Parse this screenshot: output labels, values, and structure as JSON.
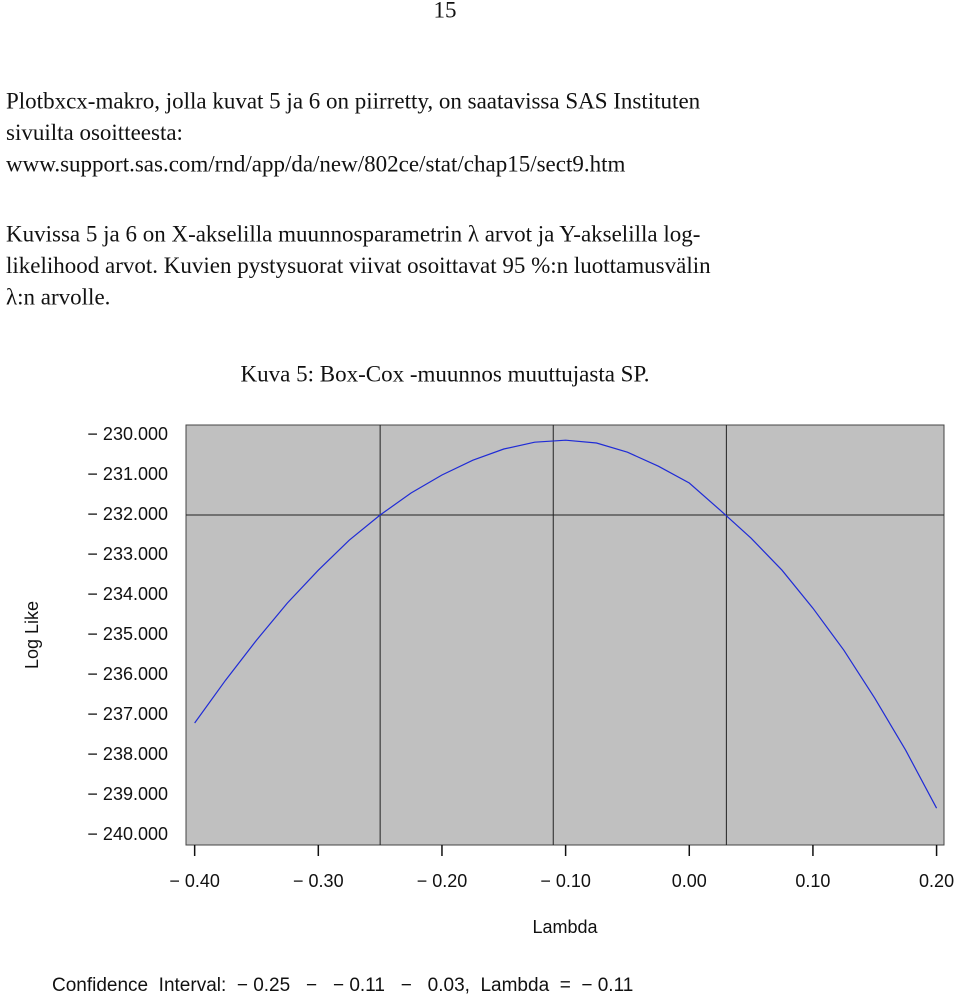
{
  "page_number": "15",
  "paragraphs": [
    [
      "Plotbxcx-makro, jolla kuvat 5 ja 6 on piirretty, on saatavissa SAS Instituten",
      "sivuilta osoitteesta:",
      "www.support.sas.com/rnd/app/da/new/802ce/stat/chap15/sect9.htm"
    ],
    [
      "Kuvissa 5 ja 6 on X-akselilla muunnosparametrin λ arvot ja Y-akselilla log-",
      "likelihood arvot. Kuvien pystysuorat viivat osoittavat 95 %:n luottamusvälin",
      "λ:n arvolle."
    ]
  ],
  "chart_data": {
    "type": "line",
    "title": "Kuva 5: Box-Cox -muunnos muuttujasta SP.",
    "x_label": "Lambda",
    "y_label": "Log Like",
    "footnote": "Confidence  Interval:  − 0.25   −   − 0.11   −   0.03,  Lambda  =  − 0.11",
    "x": [
      -0.4,
      -0.375,
      -0.35,
      -0.325,
      -0.3,
      -0.275,
      -0.25,
      -0.225,
      -0.2,
      -0.175,
      -0.15,
      -0.125,
      -0.1,
      -0.075,
      -0.05,
      -0.025,
      0,
      0.025,
      0.05,
      0.075,
      0.1,
      0.125,
      0.15,
      0.175,
      0.2
    ],
    "series": [
      {
        "name": "Log Like",
        "color": "#1f2bd6",
        "values": [
          -237.2,
          -236.13,
          -235.13,
          -234.2,
          -233.38,
          -232.63,
          -232.0,
          -231.45,
          -231.0,
          -230.63,
          -230.35,
          -230.18,
          -230.13,
          -230.2,
          -230.43,
          -230.78,
          -231.2,
          -231.88,
          -232.58,
          -233.38,
          -234.33,
          -235.38,
          -236.58,
          -237.88,
          -239.33
        ]
      }
    ],
    "vlines": [
      -0.25,
      -0.11,
      0.03
    ],
    "hline": -232,
    "xlim": [
      -0.407,
      0.206
    ],
    "ylim": [
      -240.25,
      -229.75
    ],
    "xticks": [
      {
        "value": -0.4,
        "label": "− 0.40"
      },
      {
        "value": -0.3,
        "label": "− 0.30"
      },
      {
        "value": -0.2,
        "label": "− 0.20"
      },
      {
        "value": -0.1,
        "label": "− 0.10"
      },
      {
        "value": 0,
        "label": "0.00"
      },
      {
        "value": 0.1,
        "label": "0.10"
      },
      {
        "value": 0.2,
        "label": "0.20"
      }
    ],
    "yticks": [
      {
        "value": -230,
        "label": "− 230.000"
      },
      {
        "value": -231,
        "label": "− 231.000"
      },
      {
        "value": -232,
        "label": "− 232.000"
      },
      {
        "value": -233,
        "label": "− 233.000"
      },
      {
        "value": -234,
        "label": "− 234.000"
      },
      {
        "value": -235,
        "label": "− 235.000"
      },
      {
        "value": -236,
        "label": "− 236.000"
      },
      {
        "value": -237,
        "label": "− 237.000"
      },
      {
        "value": -238,
        "label": "− 238.000"
      },
      {
        "value": -239,
        "label": "− 239.000"
      },
      {
        "value": -240,
        "label": "− 240.000"
      }
    ],
    "plot_color": "#c0c0c0"
  }
}
